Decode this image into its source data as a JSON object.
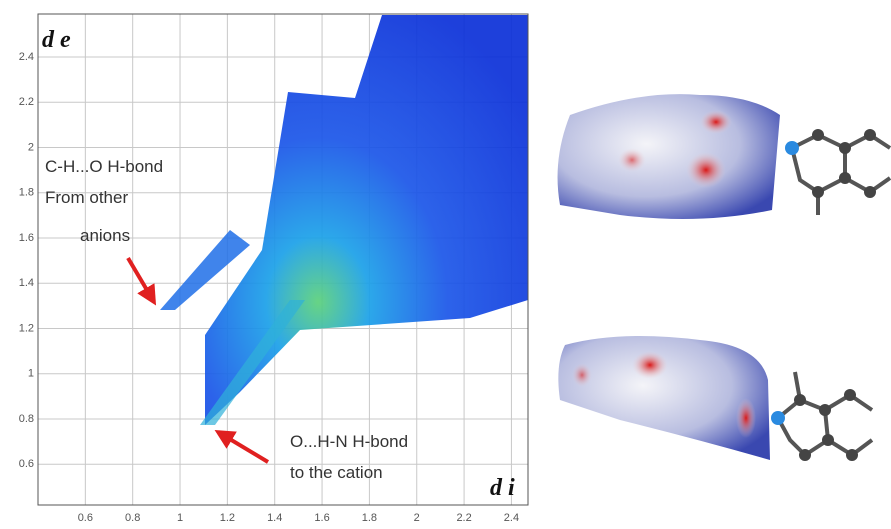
{
  "plot": {
    "x_label": "d i",
    "y_label": "d e",
    "xlim": [
      0.4,
      2.47
    ],
    "ylim": [
      0.42,
      2.59
    ],
    "xticks": [
      0.6,
      0.8,
      1.0,
      1.2,
      1.4,
      1.6,
      1.8,
      2.0,
      2.2,
      2.4
    ],
    "yticks": [
      0.6,
      0.8,
      1.0,
      1.2,
      1.4,
      1.6,
      1.8,
      2.0,
      2.2,
      2.4
    ],
    "annotations": [
      [
        "C-H...O H-bond",
        "From other",
        "anions"
      ],
      [
        "O...H-N H-bond",
        "to the cation"
      ]
    ]
  }
}
